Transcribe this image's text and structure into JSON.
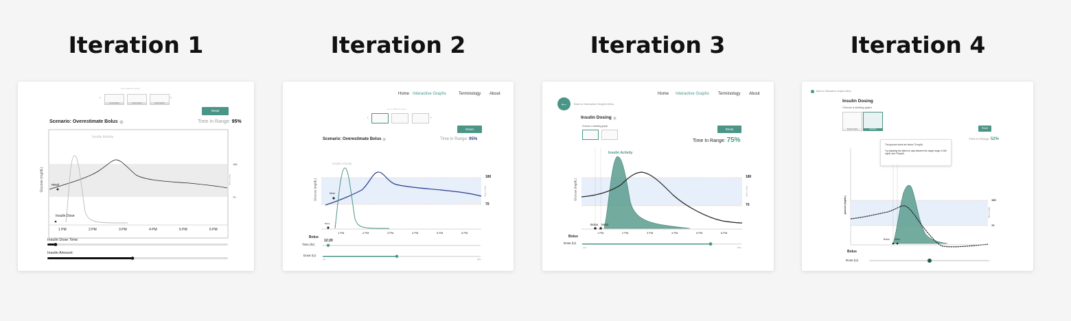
{
  "iterations": [
    {
      "title": "Iteration 1",
      "tiny_header": "see a different graph",
      "thumbs": [
        "Lorem ipsum",
        "Lorem ipsum",
        "Lorem ipsum"
      ],
      "reset": "Reset",
      "scenario": "Scenario: Overestimate Bolus",
      "info_icon": "i",
      "tir_label": "Time In Range:",
      "tir_value": "95%",
      "insulin_activity": "Insulin Activity",
      "y_axis": "Glucose (mg/dL)",
      "range_label": "target range",
      "hi": "180",
      "lo": "70",
      "meal": "meal",
      "insulin_dose": "Insulin Dose",
      "x_ticks": [
        "1 PM",
        "2 PM",
        "3 PM",
        "4 PM",
        "5 PM",
        "6 PM"
      ],
      "slider1": "Insulin Dose Time:",
      "slider2": "Insulin Amount:"
    },
    {
      "title": "Iteration 2",
      "nav": [
        "Home",
        "Interactive Graphs",
        "Terminology",
        "About"
      ],
      "tiny_header": "see a different graph",
      "reset": "Reset",
      "scenario": "Scenario: Overestimate Bolus",
      "info_icon": "i",
      "tir_label": "Time in Range:",
      "tir_value": "95%",
      "insulin_activity": "Insulin Activity",
      "y_axis": "Glucose (mg/dL)",
      "range_label": "target range",
      "hi": "180",
      "lo": "70",
      "meal": "Meal",
      "bolus_pt": "Bolus",
      "x_ticks": [
        "1 PM",
        "2 PM",
        "3 PM",
        "4 PM",
        "5 PM",
        "6 PM"
      ],
      "bolus_heading": "Bolus",
      "time_label": "Time (hr)",
      "time_value": "12:20",
      "dose_label": "Dose (U)",
      "slider_low": "Low",
      "slider_high": "More"
    },
    {
      "title": "Iteration 3",
      "nav": [
        "Home",
        "Interactive Graphs",
        "Terminology",
        "About"
      ],
      "back": "Back to Interactive Graphs Menu",
      "heading": "Insulin Dosing",
      "info_icon": "i",
      "choose": "Choose a starting graph",
      "reset": "Reset",
      "tir_label": "Time In Range:",
      "tir_value": "75%",
      "insulin_activity": "Insulin Activity",
      "y_axis": "Glucose (mg/dL)",
      "range_label": "target range",
      "hi": "180",
      "lo": "70",
      "bolus": "Bolus",
      "meal": "Meal",
      "x_ticks": [
        "1 PM",
        "2 PM",
        "3 PM",
        "4 PM",
        "5 PM",
        "6 PM"
      ],
      "bolus_heading": "Bolus",
      "dose_label": "Dose (U)",
      "slider_low": "Less",
      "slider_high": "More"
    },
    {
      "title": "Iteration 4",
      "back": "Back to Interactive Graphs Menu",
      "heading": "Insulin Dosing",
      "choose": "Choose a starting graph",
      "thumbs": [
        "Default Graph",
        "Example"
      ],
      "reset": "Reset",
      "tir_label": "Time In Range:",
      "tir_value": "52%",
      "tooltip1": "The glucose levels are below 70 mg/dL.",
      "tooltip2": "Try adjusting the sliders to stay between the target range of 180 mg/dL and 70mg/dL.",
      "y_axis": "glucose (mg/dL)",
      "range_label": "target range",
      "hi": "180",
      "lo": "70",
      "bolus": "Bolus",
      "meal": "Meal",
      "bolus_heading": "Bolus",
      "dose_label": "Dose (U)"
    }
  ],
  "colors": {
    "teal": "#4a9587",
    "navy": "#2a3b8f",
    "range_band_1": "#ececec",
    "range_band_blue": "#e6effa",
    "limit_line": "#e7b08a"
  }
}
